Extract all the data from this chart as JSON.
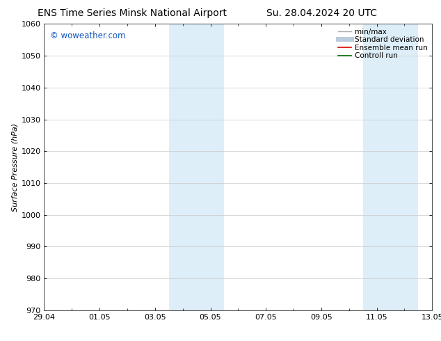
{
  "title_left": "ENS Time Series Minsk National Airport",
  "title_right": "Su. 28.04.2024 20 UTC",
  "ylabel": "Surface Pressure (hPa)",
  "ylim": [
    970,
    1060
  ],
  "yticks": [
    970,
    980,
    990,
    1000,
    1010,
    1020,
    1030,
    1040,
    1050,
    1060
  ],
  "xtick_labels": [
    "29.04",
    "01.05",
    "03.05",
    "05.05",
    "07.05",
    "09.05",
    "11.05",
    "13.05"
  ],
  "num_days": 14,
  "shaded_regions": [
    {
      "xmin": 4.5,
      "xmax": 5.5,
      "color": "#ddeef8"
    },
    {
      "xmin": 5.5,
      "xmax": 6.5,
      "color": "#ddeef8"
    },
    {
      "xmin": 11.5,
      "xmax": 12.5,
      "color": "#ddeef8"
    },
    {
      "xmin": 12.5,
      "xmax": 13.5,
      "color": "#ddeef8"
    }
  ],
  "watermark_text": "© woweather.com",
  "watermark_color": "#1155bb",
  "background_color": "#ffffff",
  "plot_bg_color": "#ffffff",
  "grid_color": "#c8c8c8",
  "legend_items": [
    {
      "label": "min/max",
      "color": "#aaaaaa",
      "lw": 1.0,
      "ls": "-"
    },
    {
      "label": "Standard deviation",
      "color": "#bbccdd",
      "lw": 5,
      "ls": "-"
    },
    {
      "label": "Ensemble mean run",
      "color": "#dd0000",
      "lw": 1.2,
      "ls": "-"
    },
    {
      "label": "Controll run",
      "color": "#006600",
      "lw": 1.2,
      "ls": "-"
    }
  ],
  "title_fontsize": 10,
  "axis_label_fontsize": 8,
  "tick_fontsize": 8,
  "legend_fontsize": 7.5,
  "watermark_fontsize": 8.5
}
